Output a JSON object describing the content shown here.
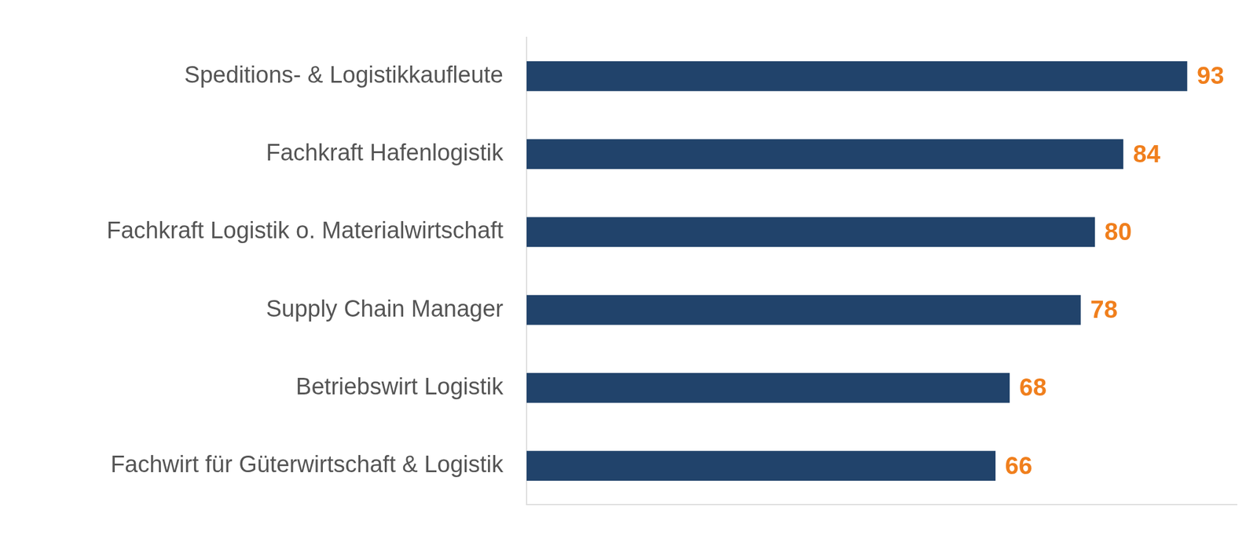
{
  "chart_data": {
    "type": "bar",
    "orientation": "horizontal",
    "categories": [
      "Speditions- & Logistikkaufleute",
      "Fachkraft Hafenlogistik",
      "Fachkraft Logistik o. Materialwirtschaft",
      "Supply Chain Manager",
      "Betriebswirt Logistik",
      "Fachwirt für Güterwirtschaft & Logistik"
    ],
    "values": [
      93,
      84,
      80,
      78,
      68,
      66
    ],
    "color": "#21436b",
    "xlim": [
      0,
      100
    ],
    "grid": false,
    "data_labels": true,
    "tick_labels": "y"
  }
}
